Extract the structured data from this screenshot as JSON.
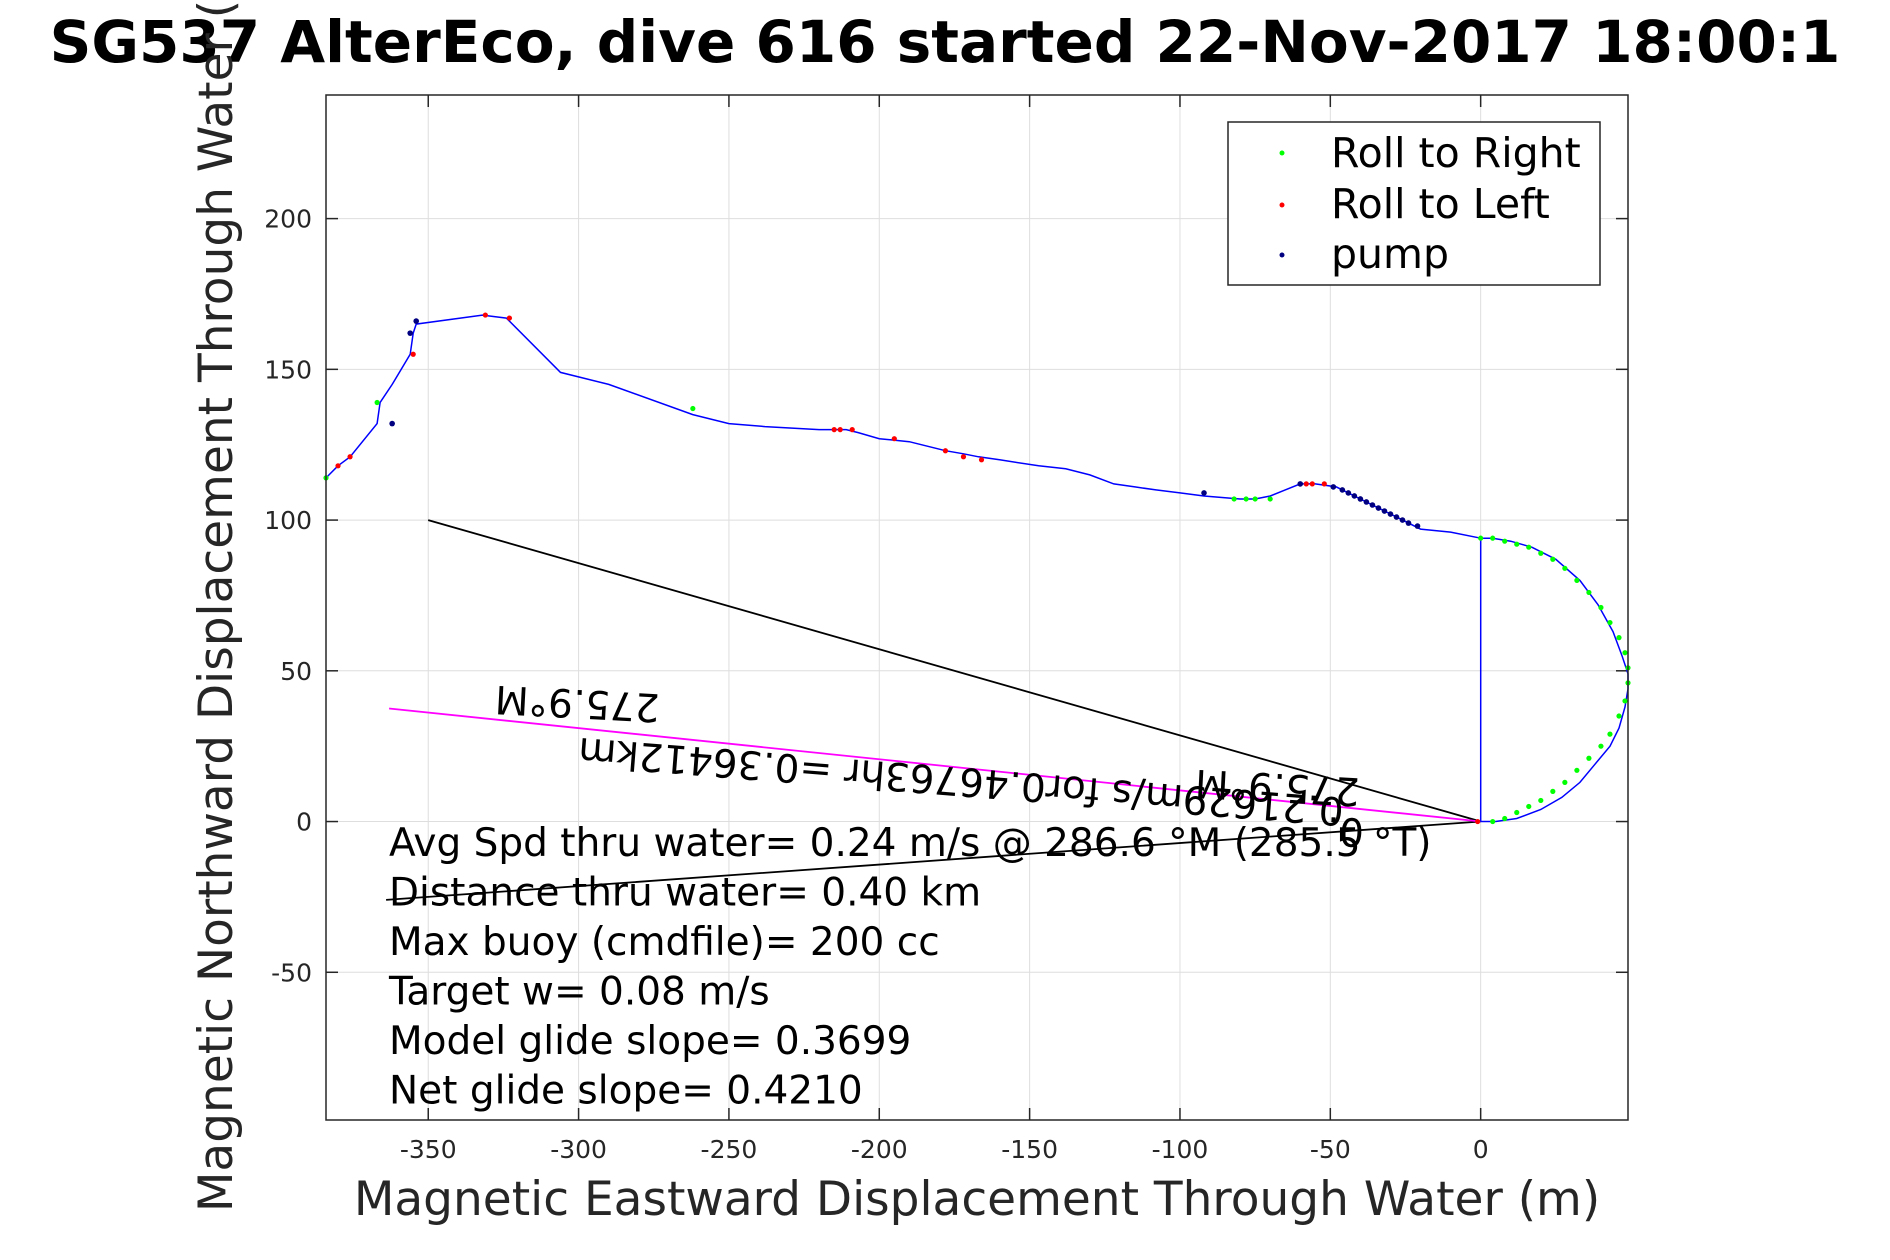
{
  "chart_data": {
    "type": "scatter",
    "title": "SG537 AlterEco, dive 616 started 22-Nov-2017 18:00:1",
    "xlabel": "Magnetic Eastward Displacement Through Water (m)",
    "ylabel": "Magnetic Northward Displacement Through Water (",
    "xlim": [
      -384,
      49
    ],
    "ylim": [
      -99,
      241
    ],
    "xticks": [
      -350,
      -300,
      -250,
      -200,
      -150,
      -100,
      -50,
      0
    ],
    "yticks": [
      -50,
      0,
      50,
      100,
      150,
      200
    ],
    "grid": true,
    "legend_position": "top-right",
    "legend": [
      "Roll to Right",
      "Roll to Left",
      "pump"
    ],
    "colors": {
      "track": "#0000ff",
      "roll_right": "#00ff00",
      "roll_left": "#ff0000",
      "pump": "#000080",
      "heading_line": "#ff00ff",
      "reference": "#000000"
    },
    "track": {
      "x": [
        0,
        4,
        10,
        17,
        25,
        33,
        39,
        44,
        47,
        49,
        49,
        48,
        46,
        43,
        38,
        33,
        27,
        20,
        12,
        5,
        0,
        0,
        -10,
        -20,
        -30,
        -40,
        -48,
        -55,
        -60,
        -65,
        -70,
        -75,
        -80,
        -92,
        -100,
        -108,
        -115,
        -122,
        -130,
        -138,
        -147,
        -160,
        -167,
        -172,
        -178,
        -182,
        -190,
        -200,
        -207,
        -211,
        -213,
        -220,
        -238,
        -250,
        -262,
        -290,
        -306,
        -324,
        -332,
        -354,
        -355,
        -356,
        -362,
        -366,
        -367,
        -376,
        -380,
        -384
      ],
      "y": [
        94,
        94,
        93,
        91,
        87,
        80,
        72,
        63,
        55,
        49,
        44,
        38,
        31,
        25,
        19,
        13,
        8,
        4,
        1,
        0,
        0,
        94,
        96,
        97,
        102,
        107,
        111,
        112,
        112,
        110,
        108,
        107,
        107,
        108,
        109,
        110,
        111,
        112,
        115,
        117,
        118,
        120,
        121,
        122,
        123,
        124,
        126,
        127,
        129,
        130,
        130,
        130,
        131,
        132,
        135,
        145,
        149,
        167,
        168,
        165,
        162,
        155,
        145,
        139,
        132,
        121,
        118,
        114
      ]
    },
    "roll_right": {
      "x": [
        0,
        4,
        8,
        12,
        16,
        20,
        24,
        28,
        32,
        36,
        40,
        43,
        46,
        48,
        49,
        49,
        48,
        46,
        43,
        40,
        36,
        32,
        28,
        24,
        20,
        16,
        12,
        8,
        4,
        -70,
        -75,
        -78,
        -82,
        -262,
        -367,
        -384
      ],
      "y": [
        94,
        94,
        93,
        92,
        91,
        89,
        87,
        84,
        80,
        76,
        71,
        66,
        61,
        56,
        51,
        46,
        40,
        35,
        29,
        25,
        21,
        17,
        13,
        10,
        7,
        5,
        3,
        1,
        0,
        107,
        107,
        107,
        107,
        137,
        139,
        114
      ]
    },
    "roll_left": {
      "x": [
        -1,
        -52,
        -56,
        -58,
        -166,
        -172,
        -178,
        -195,
        -209,
        -213,
        -215,
        -323,
        -331,
        -355,
        -376,
        -380
      ],
      "y": [
        0,
        112,
        112,
        112,
        120,
        121,
        123,
        127,
        130,
        130,
        130,
        167,
        168,
        155,
        121,
        118
      ],
      "pump": {
        "x": [
          -21,
          -24,
          -26,
          -28,
          -30,
          -32,
          -34,
          -36,
          -38,
          -40,
          -42,
          -44,
          -46,
          -49,
          -60,
          -92,
          -354,
          -356,
          -362
        ],
        "y": [
          98,
          99,
          100,
          101,
          102,
          103,
          104,
          105,
          106,
          107,
          108,
          109,
          110,
          111,
          112,
          109,
          166,
          162,
          132
        ]
      }
    },
    "reference_line": {
      "x": [
        -350,
        0,
        -364
      ],
      "y": [
        100,
        0,
        -26
      ]
    },
    "heading_line": {
      "x": [
        0,
        -363
      ],
      "y": [
        0,
        37.5
      ]
    },
    "plot_labels": {
      "heading_a": "275.9°M",
      "heading_b": "275.9°M",
      "speed_distance": "0.21629m/s for0.46763hr =0.36412km",
      "speed_tail": "0."
    },
    "annotations": [
      "Avg Spd thru water=  0.24 m/s @ 286.6 °M (285.5 °T)",
      "Distance thru water=  0.40 km",
      "Max buoy (cmdfile)= 200 cc",
      "Target w= 0.08 m/s",
      "Model glide slope= 0.3699",
      "Net glide slope= 0.4210"
    ]
  }
}
